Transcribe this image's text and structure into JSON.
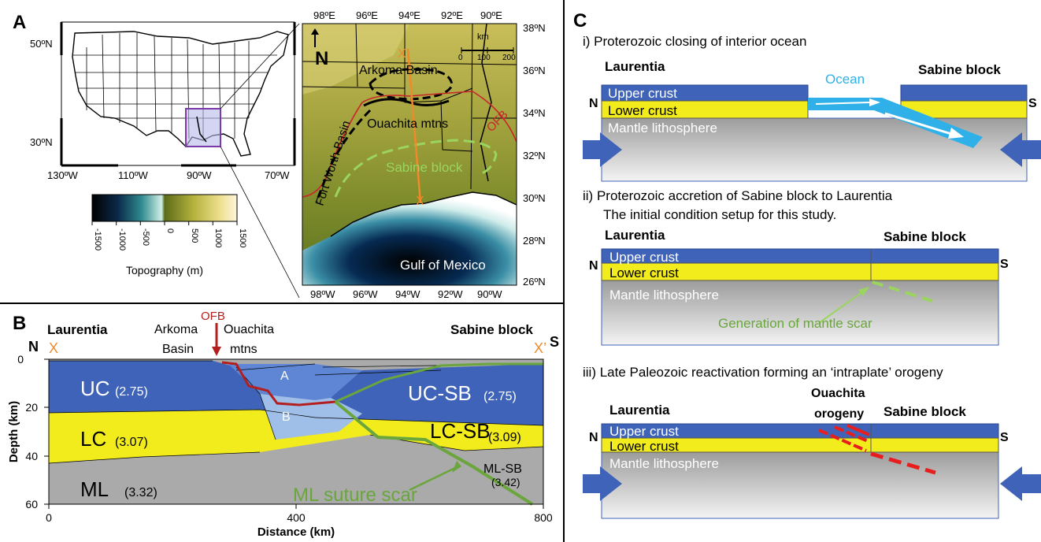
{
  "colors": {
    "upper_crust": "#3f63b8",
    "lower_crust": "#f2ec1c",
    "mantle": "#aaaaaa",
    "ocean": "#2fb0e8",
    "ofb_red": "#b31f1f",
    "green": "#6aa63c",
    "orange": "#f08a2a"
  },
  "panelA": {
    "label": "A",
    "us_map": {
      "lat_labels": [
        "50ºN",
        "30ºN"
      ],
      "lon_labels": [
        "130ºW",
        "110ºW",
        "90ºW",
        "70ºW"
      ]
    },
    "colorbar": {
      "ticks": [
        "-1500",
        "-1000",
        "-500",
        "0",
        "500",
        "1000",
        "1500"
      ],
      "label": "Topography (m)"
    },
    "regional_map": {
      "top_lon": [
        "98ºE",
        "96ºE",
        "94ºE",
        "92ºE",
        "90ºE"
      ],
      "bottom_lon": [
        "98ºW",
        "96ºW",
        "94ºW",
        "92ºW",
        "90ºW"
      ],
      "right_lat": [
        "38ºN",
        "36ºN",
        "34ºN",
        "32ºN",
        "30ºN",
        "28ºN",
        "26ºN"
      ],
      "north": "N",
      "scale_unit": "km",
      "scale_ticks": [
        "0",
        "100",
        "200"
      ],
      "labels": {
        "arkoma": "Arkoma Basin",
        "ouachita": "Ouachita mtns",
        "ofb": "OFB",
        "sabine": "Sabine block",
        "fortworth": "Fort Worth Basin",
        "gulf": "Gulf of Mexico",
        "x1": "X",
        "x2": "X"
      }
    }
  },
  "panelB": {
    "label": "B",
    "laurentia": "Laurentia",
    "sabine": "Sabine block",
    "n": "N",
    "s": "S",
    "x": "X",
    "x2": "X’",
    "ofb": "OFB",
    "arkoma1": "Arkoma",
    "arkoma2": "Basin",
    "ouachita1": "Ouachita",
    "ouachita2": "mtns",
    "y_ticks": [
      "0",
      "20",
      "40",
      "60"
    ],
    "y_label": "Depth (km)",
    "x_ticks": [
      "0",
      "400",
      "800"
    ],
    "x_label": "Distance (km)",
    "layers": {
      "uc": "UC",
      "uc_d": "(2.75)",
      "lc": "LC",
      "lc_d": "(3.07)",
      "ml": "ML",
      "ml_d": "(3.32)",
      "a": "A",
      "b": "B",
      "ucsb": "UC-SB",
      "ucsb_d": "(2.75)",
      "lcsb": "LC-SB",
      "lcsb_d": "(3.09)",
      "mlsb": "ML-SB",
      "mlsb_d": "(3.42)"
    },
    "scar": "ML suture scar"
  },
  "panelC": {
    "label": "C",
    "i": {
      "title": "i) Proterozoic closing of interior ocean",
      "left": "Laurentia",
      "right": "Sabine block",
      "ocean": "Ocean",
      "upper": "Upper crust",
      "lower": "Lower crust",
      "mantle": "Mantle lithosphere",
      "n": "N",
      "s": "S"
    },
    "ii": {
      "title": "ii) Proterozoic accretion of Sabine block to Laurentia",
      "subtitle": "The initial condition setup for this study.",
      "left": "Laurentia",
      "right": "Sabine block",
      "upper": "Upper crust",
      "lower": "Lower crust",
      "mantle": "Mantle lithosphere",
      "scar": "Generation of mantle scar",
      "n": "N",
      "s": "S"
    },
    "iii": {
      "title": "iii) Late Paleozoic reactivation forming an ‘intraplate’ orogeny",
      "left": "Laurentia",
      "right": "Sabine block",
      "orogeny1": "Ouachita",
      "orogeny2": "orogeny",
      "upper": "Upper crust",
      "lower": "Lower crust",
      "mantle": "Mantle lithosphere",
      "n": "N",
      "s": "S"
    }
  }
}
